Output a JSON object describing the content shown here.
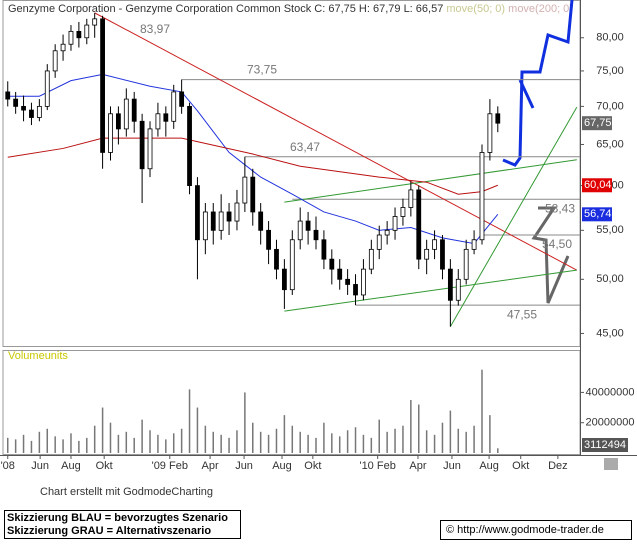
{
  "chart_data": {
    "type": "candlestick",
    "title": "Genzyme Corporation - Genzyme Corporation Common Stock C: 67,75 H: 67,79 L: 66,57",
    "ylog": true,
    "ylim": [
      44,
      86.1
    ],
    "yticks": [
      {
        "value": 45,
        "label": "45,00"
      },
      {
        "value": 50,
        "label": "50,00"
      },
      {
        "value": 55,
        "label": "55,00"
      },
      {
        "value": 60,
        "label": "60,00"
      },
      {
        "value": 65,
        "label": "65,00"
      },
      {
        "value": 70,
        "label": "70,00"
      },
      {
        "value": 75,
        "label": "75,00"
      },
      {
        "value": 80,
        "label": "80,00"
      }
    ],
    "xlim": [
      -0.6,
      72.4
    ],
    "xticks": [
      {
        "value": 0,
        "label": "'08"
      },
      {
        "value": 4.1,
        "label": "Jun"
      },
      {
        "value": 8,
        "label": "Aug"
      },
      {
        "value": 12.2,
        "label": "Okt"
      },
      {
        "value": 20.5,
        "label": "'09 Feb"
      },
      {
        "value": 25.6,
        "label": "Apr"
      },
      {
        "value": 29.9,
        "label": "Jun"
      },
      {
        "value": 34.7,
        "label": "Aug"
      },
      {
        "value": 38.6,
        "label": "Okt"
      },
      {
        "value": 46.8,
        "label": "'10 Feb"
      },
      {
        "value": 51.9,
        "label": "Apr"
      },
      {
        "value": 56.2,
        "label": "Jun"
      },
      {
        "value": 60.9,
        "label": "Aug"
      },
      {
        "value": 64.9,
        "label": "Okt"
      },
      {
        "value": 69.6,
        "label": "Dez"
      }
    ],
    "candles": [
      [
        72,
        73.5,
        70,
        71
      ],
      [
        71,
        72,
        69,
        70
      ],
      [
        70,
        71.5,
        68,
        69.5
      ],
      [
        69.5,
        70.5,
        67.5,
        68.5
      ],
      [
        68.5,
        71,
        68,
        70
      ],
      [
        70,
        76,
        69.5,
        75
      ],
      [
        75,
        79,
        74,
        78
      ],
      [
        78,
        80.5,
        76.5,
        79
      ],
      [
        79,
        82,
        78,
        81
      ],
      [
        81,
        82.5,
        78.5,
        80
      ],
      [
        80,
        83,
        79,
        82
      ],
      [
        82,
        83.97,
        80,
        83
      ],
      [
        83,
        83.5,
        62,
        64
      ],
      [
        64,
        70,
        63,
        69
      ],
      [
        69,
        70,
        65,
        67
      ],
      [
        67,
        72.5,
        66,
        71
      ],
      [
        71,
        72,
        66.5,
        68
      ],
      [
        68,
        69,
        58,
        62
      ],
      [
        62,
        68,
        61,
        67
      ],
      [
        67,
        70.5,
        66,
        69
      ],
      [
        69,
        70,
        66,
        68
      ],
      [
        68,
        73,
        67,
        72
      ],
      [
        72,
        73.75,
        69,
        70
      ],
      [
        70,
        70.5,
        59,
        60
      ],
      [
        60,
        61,
        50,
        54
      ],
      [
        54,
        58,
        52.5,
        57
      ],
      [
        57,
        58,
        53.5,
        55
      ],
      [
        55,
        59,
        54,
        57
      ],
      [
        57,
        58,
        54.5,
        56
      ],
      [
        56,
        59.5,
        55,
        58
      ],
      [
        58,
        63.47,
        57,
        61
      ],
      [
        61,
        62,
        55.5,
        57
      ],
      [
        57,
        58,
        53.5,
        55
      ],
      [
        55,
        56,
        51.5,
        53
      ],
      [
        53,
        54,
        50,
        51
      ],
      [
        51,
        52,
        47.2,
        49
      ],
      [
        49,
        55,
        48.5,
        54
      ],
      [
        54,
        57.5,
        53,
        56
      ],
      [
        56,
        57,
        53.5,
        55
      ],
      [
        55,
        56.5,
        53,
        54
      ],
      [
        54,
        55,
        51,
        52
      ],
      [
        52,
        53,
        49.5,
        51
      ],
      [
        51,
        52,
        49,
        50
      ],
      [
        50,
        51,
        48.5,
        49.5
      ],
      [
        49.5,
        50.5,
        47.55,
        48.5
      ],
      [
        48.5,
        52,
        48,
        51
      ],
      [
        51,
        54,
        50.5,
        53
      ],
      [
        53,
        55.5,
        52,
        54.5
      ],
      [
        54.5,
        56,
        53.5,
        55
      ],
      [
        55,
        57.5,
        54,
        56.5
      ],
      [
        56.5,
        58.5,
        55.5,
        57.5
      ],
      [
        57.5,
        60.5,
        56.5,
        59.5
      ],
      [
        59.5,
        60,
        51,
        52
      ],
      [
        52,
        54,
        50.5,
        53
      ],
      [
        53,
        55,
        52,
        54
      ],
      [
        54,
        54.5,
        50,
        51
      ],
      [
        51,
        52,
        45.6,
        48
      ],
      [
        48,
        51,
        47.5,
        50
      ],
      [
        50,
        54,
        49.5,
        53
      ],
      [
        53,
        55,
        52.5,
        54
      ],
      [
        54,
        65,
        53.5,
        64
      ],
      [
        64,
        71,
        63,
        69
      ],
      [
        69,
        70,
        66.57,
        67.75
      ]
    ],
    "close_label": "67,75",
    "series": [
      {
        "name": "move(50; 0)",
        "color": "#2233dd",
        "label_color": "#1a2ee0",
        "last_label": "56,74",
        "x": [
          0,
          4,
          8,
          12,
          18,
          22,
          24,
          28,
          32,
          36,
          40,
          44,
          47,
          51,
          55,
          59,
          62
        ],
        "values": [
          71.4,
          71.4,
          73.6,
          74.5,
          72.8,
          72,
          69.4,
          64,
          61,
          59,
          57,
          56,
          55,
          55.3,
          54.2,
          53.6,
          56.74
        ]
      },
      {
        "name": "move(200; 0)",
        "color": "#bb1111",
        "label_color": "#e00000",
        "last_label": "60,04",
        "x": [
          0,
          7,
          12,
          22,
          31,
          37,
          47,
          53,
          57,
          60,
          62
        ],
        "values": [
          63.4,
          64.5,
          65.8,
          65.8,
          63.8,
          62.3,
          61,
          60.4,
          59,
          59.3,
          60.04
        ]
      }
    ],
    "trendlines": [
      {
        "color": "#cc2222",
        "x": [
          11,
          72
        ],
        "values": [
          83.97,
          50.9
        ]
      },
      {
        "color": "#339933",
        "x": [
          35,
          72
        ],
        "values": [
          58.1,
          63.1
        ]
      },
      {
        "color": "#339933",
        "x": [
          35,
          72
        ],
        "values": [
          47,
          50.9
        ]
      },
      {
        "color": "#339933",
        "x": [
          56,
          72
        ],
        "values": [
          45.6,
          69.9
        ]
      }
    ],
    "annotations": [
      {
        "label": "83,97",
        "value": 83.97
      }
    ],
    "levels": [
      {
        "label": "73,75",
        "value": 73.75,
        "from": 22
      },
      {
        "label": "63,47",
        "value": 63.47,
        "from": 30
      },
      {
        "label": "58,43",
        "value": 58.43,
        "from": 36
      },
      {
        "label": "54,50",
        "value": 54.5,
        "from": 60
      },
      {
        "label": "47,55",
        "value": 47.55,
        "from": 44
      }
    ],
    "volume": {
      "label": "Volumeunits",
      "ylim": [
        0,
        68000000
      ],
      "yticks": [
        20000000,
        40000000
      ],
      "values": [
        10000000,
        9000000,
        12000000,
        8000000,
        14000000,
        16000000,
        11000000,
        9000000,
        13000000,
        8000000,
        10000000,
        18000000,
        30000000,
        20000000,
        12000000,
        14000000,
        10000000,
        22000000,
        15000000,
        12000000,
        9000000,
        13000000,
        16000000,
        42000000,
        30000000,
        18000000,
        14000000,
        12000000,
        10000000,
        15000000,
        40000000,
        20000000,
        14000000,
        12000000,
        16000000,
        25000000,
        18000000,
        14000000,
        12000000,
        10000000,
        20000000,
        13000000,
        11000000,
        15000000,
        17000000,
        12000000,
        10000000,
        22000000,
        14000000,
        16000000,
        18000000,
        35000000,
        32000000,
        15000000,
        12000000,
        20000000,
        28000000,
        16000000,
        14000000,
        18000000,
        55000000,
        25000000,
        3112494
      ]
    }
  },
  "footer": {
    "credit": "Chart erstellt mit GodmodeCharting",
    "legend": [
      "Skizzierung BLAU = bevorzugtes Szenario",
      "Skizzierung GRAU = Alternativszenario"
    ],
    "source": "© http://www.godmode-trader.de"
  }
}
